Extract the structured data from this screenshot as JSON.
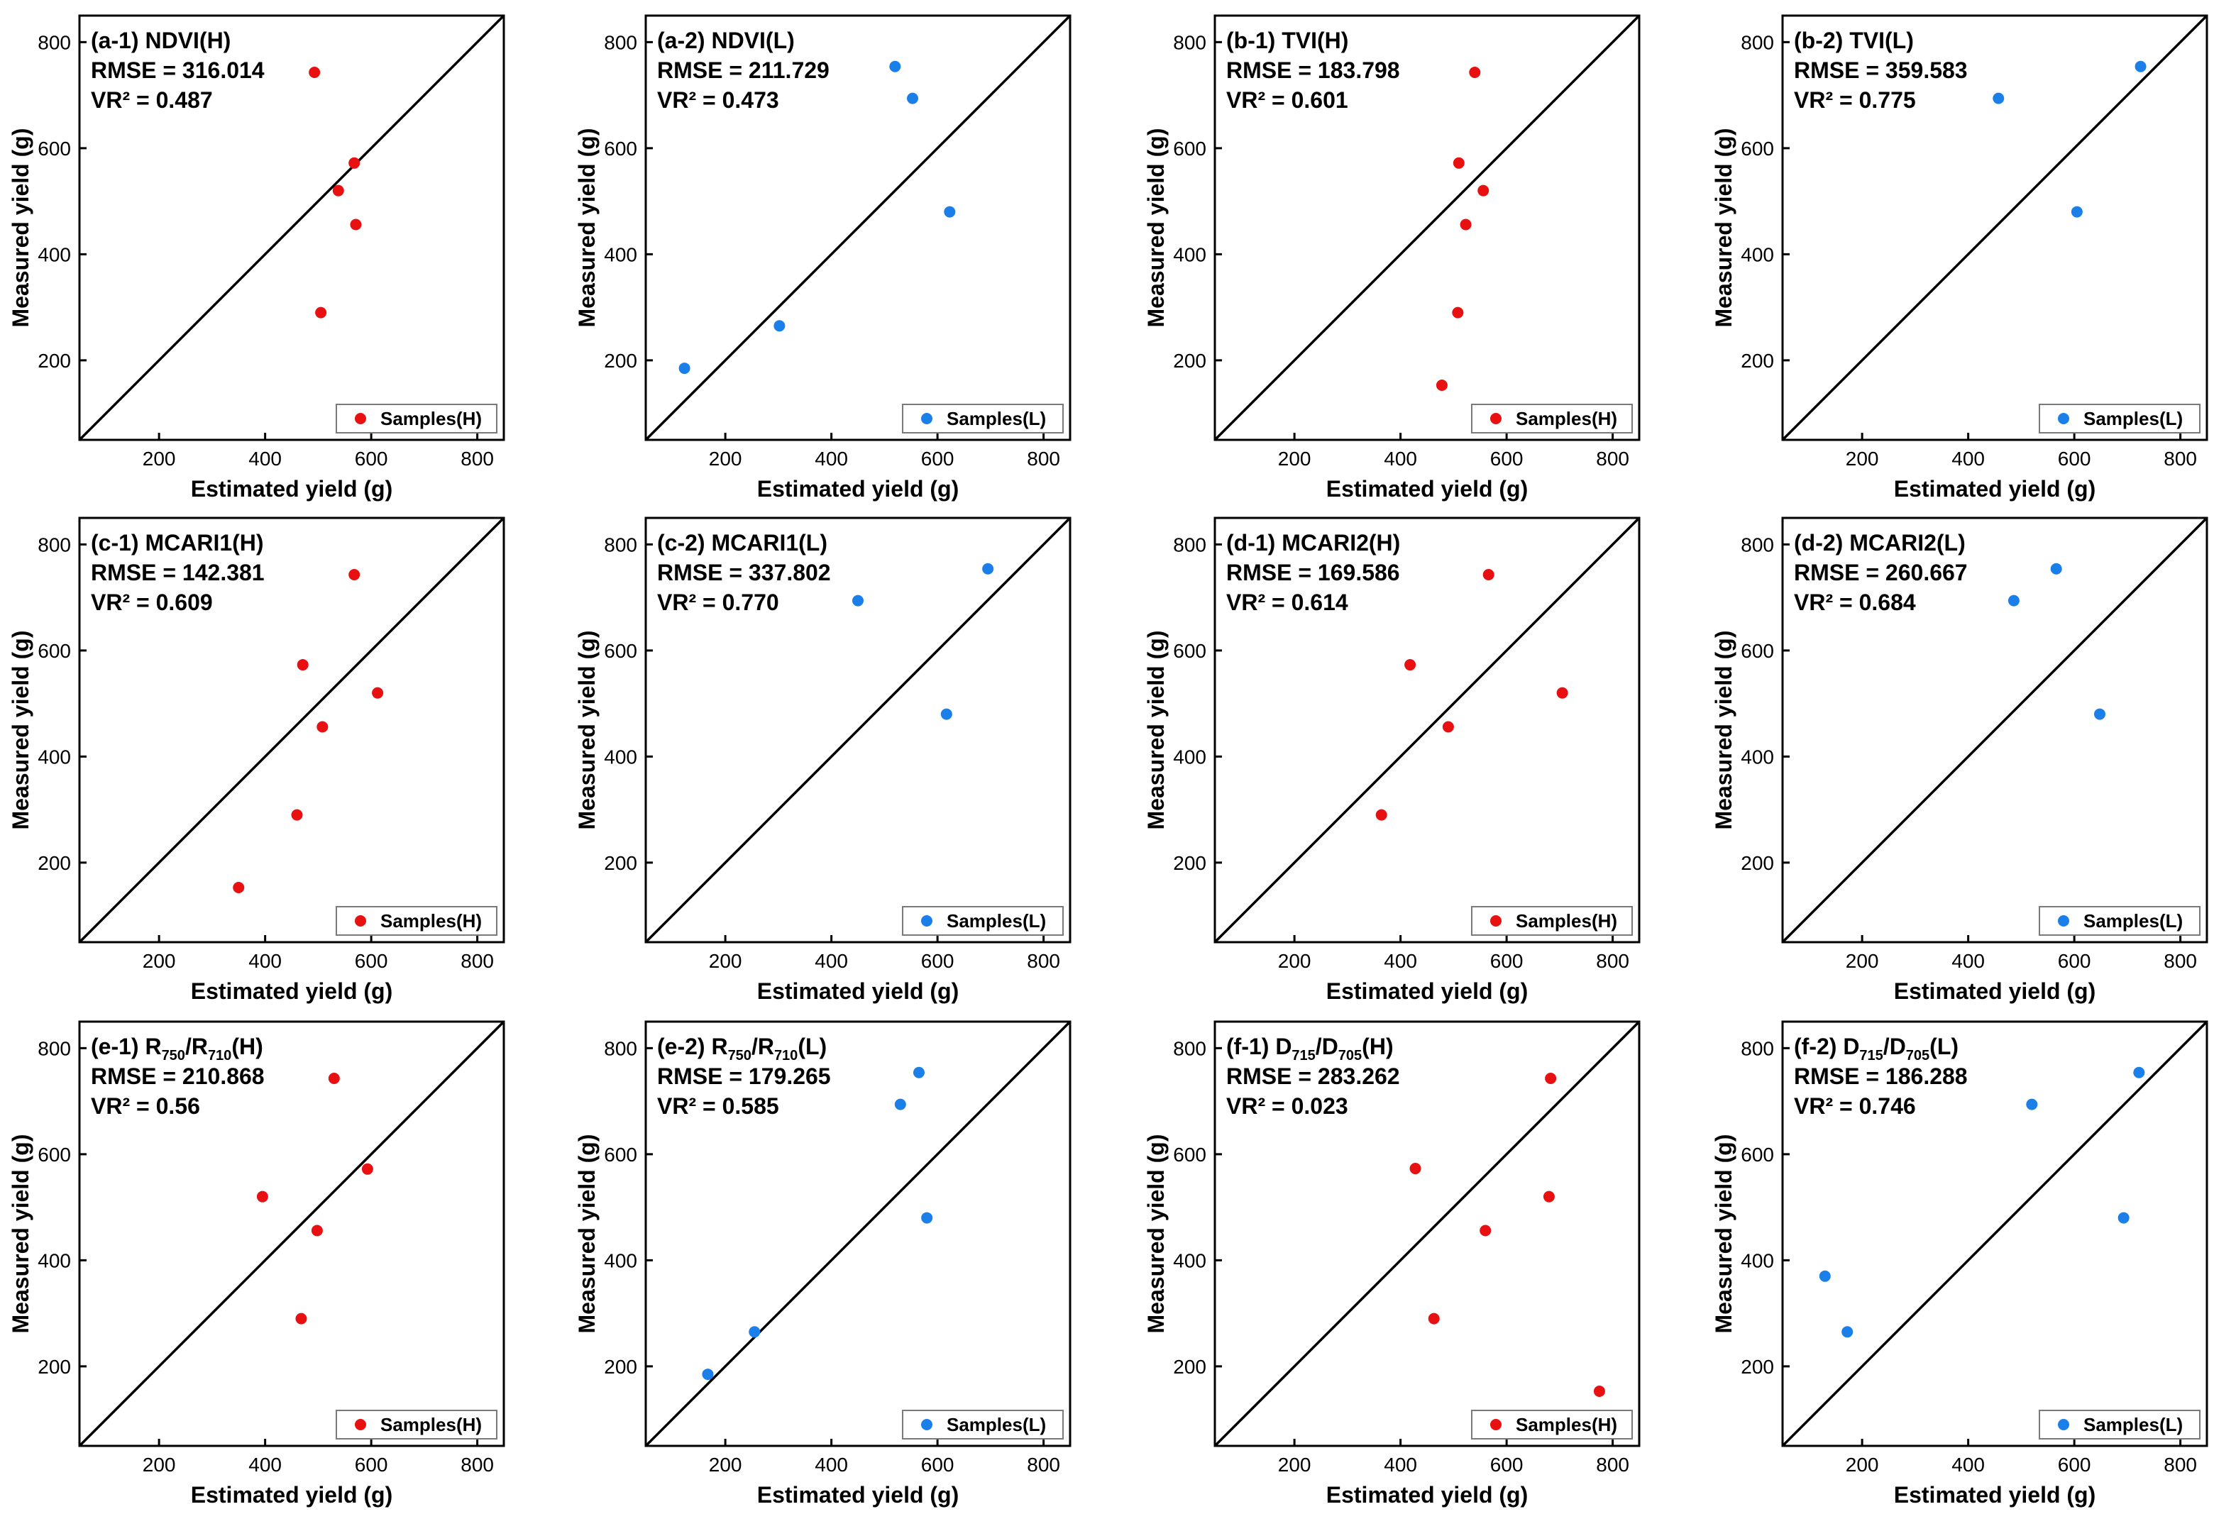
{
  "colors": {
    "high": "#e81010",
    "low": "#1b7fea",
    "axis": "#000000"
  },
  "chart_data": [
    {
      "type": "scatter",
      "title": "(a-1) NDVI(H)",
      "title_main": "(a-1) NDVI(H)",
      "rmse": "RMSE = 316.014",
      "vr2": "VR² = 0.487",
      "xlabel": "Estimated yield (g)",
      "ylabel": "Measured yield (g)",
      "xlim": [
        50,
        850
      ],
      "ylim": [
        50,
        850
      ],
      "xticks": [
        200,
        400,
        600,
        800
      ],
      "yticks": [
        200,
        400,
        600,
        800
      ],
      "legend": "Samples(H)",
      "series_color": "high",
      "points": [
        [
          493,
          743
        ],
        [
          568,
          572
        ],
        [
          538,
          520
        ],
        [
          571,
          456
        ],
        [
          505,
          290
        ]
      ]
    },
    {
      "type": "scatter",
      "title": "(a-2) NDVI(L)",
      "title_main": "(a-2) NDVI(L)",
      "rmse": "RMSE = 211.729",
      "vr2": "VR² = 0.473",
      "xlabel": "Estimated yield (g)",
      "ylabel": "Measured yield (g)",
      "xlim": [
        50,
        850
      ],
      "ylim": [
        50,
        850
      ],
      "xticks": [
        200,
        400,
        600,
        800
      ],
      "yticks": [
        200,
        400,
        600,
        800
      ],
      "legend": "Samples(L)",
      "series_color": "low",
      "points": [
        [
          520,
          754
        ],
        [
          553,
          694
        ],
        [
          623,
          480
        ],
        [
          302,
          265
        ],
        [
          123,
          185
        ]
      ]
    },
    {
      "type": "scatter",
      "title": "(b-1) TVI(H)",
      "title_main": "(b-1) TVI(H)",
      "rmse": "RMSE = 183.798",
      "vr2": "VR² = 0.601",
      "xlabel": "Estimated yield (g)",
      "ylabel": "Measured yield (g)",
      "xlim": [
        50,
        850
      ],
      "ylim": [
        50,
        850
      ],
      "xticks": [
        200,
        400,
        600,
        800
      ],
      "yticks": [
        200,
        400,
        600,
        800
      ],
      "legend": "Samples(H)",
      "series_color": "high",
      "points": [
        [
          540,
          743
        ],
        [
          510,
          572
        ],
        [
          556,
          520
        ],
        [
          523,
          456
        ],
        [
          508,
          290
        ],
        [
          478,
          153
        ]
      ]
    },
    {
      "type": "scatter",
      "title": "(b-2) TVI(L)",
      "title_main": "(b-2) TVI(L)",
      "rmse": "RMSE = 359.583",
      "vr2": "VR² = 0.775",
      "xlabel": "Estimated yield (g)",
      "ylabel": "Measured yield (g)",
      "xlim": [
        50,
        850
      ],
      "ylim": [
        50,
        850
      ],
      "xticks": [
        200,
        400,
        600,
        800
      ],
      "yticks": [
        200,
        400,
        600,
        800
      ],
      "legend": "Samples(L)",
      "series_color": "low",
      "points": [
        [
          725,
          754
        ],
        [
          457,
          694
        ],
        [
          605,
          480
        ]
      ]
    },
    {
      "type": "scatter",
      "title": "(c-1) MCARI1(H)",
      "title_main": "(c-1) MCARI1(H)",
      "rmse": "RMSE = 142.381",
      "vr2": "VR² = 0.609",
      "xlabel": "Estimated yield (g)",
      "ylabel": "Measured yield (g)",
      "xlim": [
        50,
        850
      ],
      "ylim": [
        50,
        850
      ],
      "xticks": [
        200,
        400,
        600,
        800
      ],
      "yticks": [
        200,
        400,
        600,
        800
      ],
      "legend": "Samples(H)",
      "series_color": "high",
      "points": [
        [
          568,
          743
        ],
        [
          471,
          573
        ],
        [
          612,
          520
        ],
        [
          508,
          456
        ],
        [
          460,
          290
        ],
        [
          350,
          153
        ]
      ]
    },
    {
      "type": "scatter",
      "title": "(c-2) MCARI1(L)",
      "title_main": "(c-2) MCARI1(L)",
      "rmse": "RMSE = 337.802",
      "vr2": "VR² = 0.770",
      "xlabel": "Estimated yield (g)",
      "ylabel": "Measured yield (g)",
      "xlim": [
        50,
        850
      ],
      "ylim": [
        50,
        850
      ],
      "xticks": [
        200,
        400,
        600,
        800
      ],
      "yticks": [
        200,
        400,
        600,
        800
      ],
      "legend": "Samples(L)",
      "series_color": "low",
      "points": [
        [
          695,
          754
        ],
        [
          450,
          694
        ],
        [
          617,
          480
        ]
      ]
    },
    {
      "type": "scatter",
      "title": "(d-1) MCARI2(H)",
      "title_main": "(d-1) MCARI2(H)",
      "rmse": "RMSE = 169.586",
      "vr2": "VR² = 0.614",
      "xlabel": "Estimated yield (g)",
      "ylabel": "Measured yield (g)",
      "xlim": [
        50,
        850
      ],
      "ylim": [
        50,
        850
      ],
      "xticks": [
        200,
        400,
        600,
        800
      ],
      "yticks": [
        200,
        400,
        600,
        800
      ],
      "legend": "Samples(H)",
      "series_color": "high",
      "points": [
        [
          566,
          743
        ],
        [
          418,
          573
        ],
        [
          705,
          520
        ],
        [
          490,
          456
        ],
        [
          364,
          290
        ]
      ]
    },
    {
      "type": "scatter",
      "title": "(d-2) MCARI2(L)",
      "title_main": "(d-2) MCARI2(L)",
      "rmse": "RMSE = 260.667",
      "vr2": "VR² = 0.684",
      "xlabel": "Estimated yield (g)",
      "ylabel": "Measured yield (g)",
      "xlim": [
        50,
        850
      ],
      "ylim": [
        50,
        850
      ],
      "xticks": [
        200,
        400,
        600,
        800
      ],
      "yticks": [
        200,
        400,
        600,
        800
      ],
      "legend": "Samples(L)",
      "series_color": "low",
      "points": [
        [
          566,
          754
        ],
        [
          486,
          694
        ],
        [
          648,
          480
        ]
      ]
    },
    {
      "type": "scatter",
      "title": "(e-1) R750/R710(H)",
      "title_main": "(e-1) R",
      "title_sub1": "750",
      "title_mid": "/R",
      "title_sub2": "710",
      "title_end": "(H)",
      "rmse": "RMSE = 210.868",
      "vr2": "VR² = 0.56",
      "xlabel": "Estimated yield (g)",
      "ylabel": "Measured yield (g)",
      "xlim": [
        50,
        850
      ],
      "ylim": [
        50,
        850
      ],
      "xticks": [
        200,
        400,
        600,
        800
      ],
      "yticks": [
        200,
        400,
        600,
        800
      ],
      "legend": "Samples(H)",
      "series_color": "high",
      "points": [
        [
          530,
          743
        ],
        [
          593,
          572
        ],
        [
          395,
          520
        ],
        [
          498,
          456
        ],
        [
          468,
          290
        ]
      ]
    },
    {
      "type": "scatter",
      "title": "(e-2) R750/R710(L)",
      "title_main": "(e-2) R",
      "title_sub1": "750",
      "title_mid": "/R",
      "title_sub2": "710",
      "title_end": "(L)",
      "rmse": "RMSE = 179.265",
      "vr2": "VR² = 0.585",
      "xlabel": "Estimated yield (g)",
      "ylabel": "Measured yield (g)",
      "xlim": [
        50,
        850
      ],
      "ylim": [
        50,
        850
      ],
      "xticks": [
        200,
        400,
        600,
        800
      ],
      "yticks": [
        200,
        400,
        600,
        800
      ],
      "legend": "Samples(L)",
      "series_color": "low",
      "points": [
        [
          565,
          754
        ],
        [
          530,
          694
        ],
        [
          580,
          480
        ],
        [
          255,
          265
        ],
        [
          167,
          185
        ]
      ]
    },
    {
      "type": "scatter",
      "title": "(f-1) D715/D705(H)",
      "title_main": "(f-1) D",
      "title_sub1": "715",
      "title_mid": "/D",
      "title_sub2": "705",
      "title_end": "(H)",
      "rmse": "RMSE = 283.262",
      "vr2": "VR² = 0.023",
      "xlabel": "Estimated yield (g)",
      "ylabel": "Measured yield (g)",
      "xlim": [
        50,
        850
      ],
      "ylim": [
        50,
        850
      ],
      "xticks": [
        200,
        400,
        600,
        800
      ],
      "yticks": [
        200,
        400,
        600,
        800
      ],
      "legend": "Samples(H)",
      "series_color": "high",
      "points": [
        [
          683,
          743
        ],
        [
          428,
          573
        ],
        [
          680,
          520
        ],
        [
          560,
          456
        ],
        [
          463,
          290
        ],
        [
          775,
          153
        ]
      ]
    },
    {
      "type": "scatter",
      "title": "(f-2) D715/D705(L)",
      "title_main": "(f-2) D",
      "title_sub1": "715",
      "title_mid": "/D",
      "title_sub2": "705",
      "title_end": "(L)",
      "rmse": "RMSE = 186.288",
      "vr2": "VR² = 0.746",
      "xlabel": "Estimated yield (g)",
      "ylabel": "Measured yield (g)",
      "xlim": [
        50,
        850
      ],
      "ylim": [
        50,
        850
      ],
      "xticks": [
        200,
        400,
        600,
        800
      ],
      "yticks": [
        200,
        400,
        600,
        800
      ],
      "legend": "Samples(L)",
      "series_color": "low",
      "points": [
        [
          722,
          754
        ],
        [
          520,
          694
        ],
        [
          693,
          480
        ],
        [
          130,
          370
        ],
        [
          172,
          265
        ]
      ]
    }
  ]
}
